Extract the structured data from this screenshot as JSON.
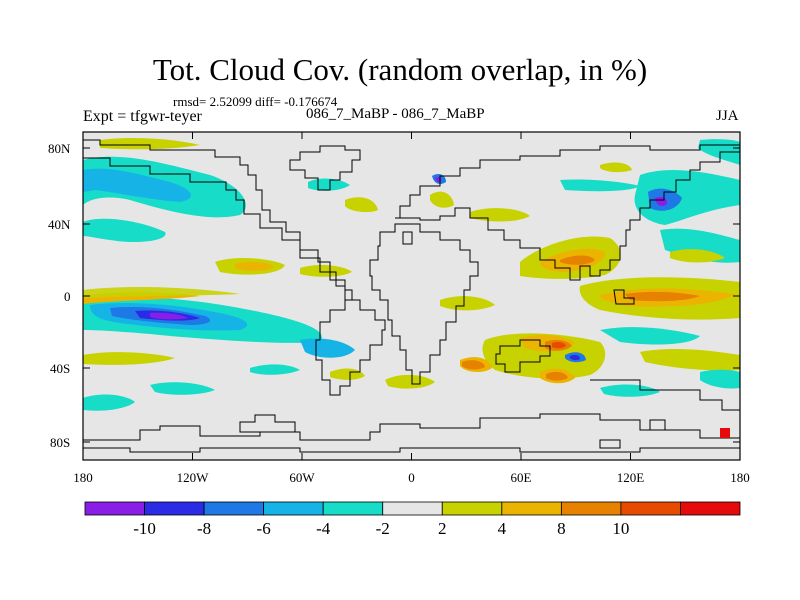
{
  "chart_data": {
    "type": "heatmap",
    "title": "Tot. Cloud Cov. (random overlap, in %)",
    "stats_line": "rmsd= 2.52099 diff= -0.176674",
    "left_label": "Expt = tfgwr-teyer",
    "center_label": "086_7_MaBP - 086_7_MaBP",
    "right_label": "JJA",
    "x_ticks": [
      "180",
      "120W",
      "60W",
      "0",
      "60E",
      "120E",
      "180"
    ],
    "y_ticks": [
      "80N",
      "40N",
      "0",
      "40S",
      "80S"
    ],
    "xlim": [
      -180,
      180
    ],
    "ylim": [
      -90,
      90
    ],
    "colorbar": {
      "levels": [
        "-10",
        "-8",
        "-6",
        "-4",
        "-2",
        "2",
        "4",
        "8",
        "10"
      ],
      "colors": [
        "#8a1ee6",
        "#2b2be6",
        "#1e78e6",
        "#16b4e6",
        "#16dcc8",
        "#e6e6e6",
        "#c8d200",
        "#ebb400",
        "#e68200",
        "#e64b00",
        "#e60a0a"
      ]
    },
    "features": [
      {
        "name": "pacific-tropical-min",
        "lon": -120,
        "lat": -12,
        "value": -10
      },
      {
        "name": "nw-pacific-max",
        "lon": 150,
        "lat": 20,
        "value": -9
      },
      {
        "name": "indian-ocean-max",
        "lon": 80,
        "lat": 18,
        "value": 6
      },
      {
        "name": "west-pacific-max",
        "lon": 150,
        "lat": 0,
        "value": 5
      },
      {
        "name": "s-indian-max",
        "lon": 70,
        "lat": -28,
        "value": 8
      },
      {
        "name": "s-indian-max-2",
        "lon": 75,
        "lat": -42,
        "value": 7
      }
    ]
  }
}
